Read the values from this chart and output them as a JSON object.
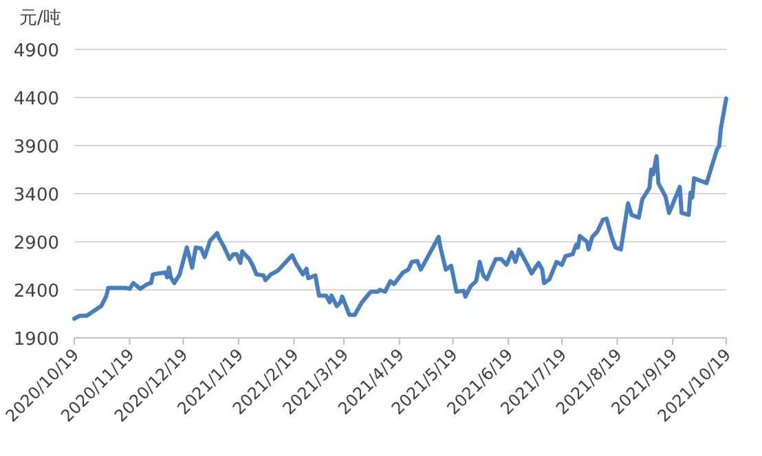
{
  "chart_data": {
    "type": "line",
    "ylabel": "元/吨",
    "x": [
      "2020-10-19",
      "2020-10-22",
      "2020-10-26",
      "2020-10-30",
      "2020-11-03",
      "2020-11-05",
      "2020-11-06",
      "2020-11-07",
      "2020-11-17",
      "2020-11-19",
      "2020-11-21",
      "2020-11-25",
      "2020-11-29",
      "2020-12-01",
      "2020-12-02",
      "2020-12-05",
      "2020-12-09",
      "2020-12-10",
      "2020-12-11",
      "2020-12-12",
      "2020-12-14",
      "2020-12-17",
      "2020-12-21",
      "2020-12-24",
      "2020-12-26",
      "2020-12-29",
      "2020-12-31",
      "2021-01-03",
      "2021-01-07",
      "2021-01-08",
      "2021-01-11",
      "2021-01-14",
      "2021-01-16",
      "2021-01-18",
      "2021-01-20",
      "2021-01-21",
      "2021-01-25",
      "2021-01-27",
      "2021-01-29",
      "2021-02-02",
      "2021-02-03",
      "2021-02-06",
      "2021-02-10",
      "2021-02-18",
      "2021-02-20",
      "2021-02-24",
      "2021-02-26",
      "2021-02-27",
      "2021-03-03",
      "2021-03-05",
      "2021-03-09",
      "2021-03-11",
      "2021-03-12",
      "2021-03-15",
      "2021-03-17",
      "2021-03-18",
      "2021-03-22",
      "2021-03-25",
      "2021-03-29",
      "2021-04-03",
      "2021-04-07",
      "2021-04-08",
      "2021-04-11",
      "2021-04-14",
      "2021-04-16",
      "2021-04-21",
      "2021-04-24",
      "2021-04-26",
      "2021-04-29",
      "2021-05-01",
      "2021-05-11",
      "2021-05-12",
      "2021-05-15",
      "2021-05-18",
      "2021-05-21",
      "2021-05-25",
      "2021-05-26",
      "2021-05-29",
      "2021-06-01",
      "2021-06-03",
      "2021-06-05",
      "2021-06-07",
      "2021-06-10",
      "2021-06-12",
      "2021-06-15",
      "2021-06-18",
      "2021-06-21",
      "2021-06-23",
      "2021-06-25",
      "2021-06-30",
      "2021-07-02",
      "2021-07-06",
      "2021-07-08",
      "2021-07-09",
      "2021-07-12",
      "2021-07-16",
      "2021-07-19",
      "2021-07-21",
      "2021-07-25",
      "2021-07-27",
      "2021-07-28",
      "2021-07-29",
      "2021-08-02",
      "2021-08-03",
      "2021-08-05",
      "2021-08-08",
      "2021-08-11",
      "2021-08-13",
      "2021-08-16",
      "2021-08-18",
      "2021-08-21",
      "2021-08-25",
      "2021-08-27",
      "2021-08-31",
      "2021-09-02",
      "2021-09-06",
      "2021-09-07",
      "2021-09-08",
      "2021-09-10",
      "2021-09-11",
      "2021-09-15",
      "2021-09-17",
      "2021-09-23",
      "2021-09-24",
      "2021-09-28",
      "2021-09-29",
      "2021-09-30",
      "2021-10-01",
      "2021-10-08",
      "2021-10-14",
      "2021-10-15",
      "2021-10-16",
      "2021-10-19"
    ],
    "series": [
      {
        "color": "#4a7ebb",
        "values": [
          2100,
          2130,
          2130,
          2180,
          2230,
          2300,
          2340,
          2420,
          2420,
          2410,
          2470,
          2410,
          2460,
          2470,
          2560,
          2570,
          2580,
          2530,
          2630,
          2530,
          2470,
          2560,
          2840,
          2630,
          2840,
          2830,
          2740,
          2910,
          2990,
          2940,
          2840,
          2720,
          2770,
          2770,
          2680,
          2800,
          2720,
          2650,
          2560,
          2550,
          2500,
          2560,
          2600,
          2760,
          2680,
          2560,
          2620,
          2520,
          2550,
          2340,
          2340,
          2270,
          2340,
          2230,
          2270,
          2330,
          2140,
          2140,
          2270,
          2380,
          2380,
          2400,
          2380,
          2490,
          2460,
          2580,
          2610,
          2690,
          2700,
          2610,
          2950,
          2840,
          2610,
          2650,
          2380,
          2390,
          2330,
          2440,
          2490,
          2690,
          2550,
          2510,
          2640,
          2720,
          2720,
          2660,
          2790,
          2690,
          2820,
          2650,
          2570,
          2680,
          2610,
          2470,
          2510,
          2690,
          2660,
          2750,
          2770,
          2870,
          2840,
          2960,
          2900,
          2820,
          2950,
          3010,
          3130,
          3140,
          2940,
          2840,
          2820,
          3300,
          3180,
          3150,
          3340,
          3460,
          3650,
          3600,
          3790,
          3510,
          3370,
          3200,
          3470,
          3200,
          3180,
          3410,
          3360,
          3560,
          3510,
          3870,
          3890,
          4080,
          4390
        ]
      }
    ],
    "xlim": [
      "2020-10-19",
      "2021-10-19"
    ],
    "xticks": [
      {
        "value": "2020-10-19",
        "label": "2020/10/19"
      },
      {
        "value": "2020-11-19",
        "label": "2020/11/19"
      },
      {
        "value": "2020-12-19",
        "label": "2020/12/19"
      },
      {
        "value": "2021-01-19",
        "label": "2021/1/19"
      },
      {
        "value": "2021-02-19",
        "label": "2021/2/19"
      },
      {
        "value": "2021-03-19",
        "label": "2021/3/19"
      },
      {
        "value": "2021-04-19",
        "label": "2021/4/19"
      },
      {
        "value": "2021-05-19",
        "label": "2021/5/19"
      },
      {
        "value": "2021-06-19",
        "label": "2021/6/19"
      },
      {
        "value": "2021-07-19",
        "label": "2021/7/19"
      },
      {
        "value": "2021-08-19",
        "label": "2021/8/19"
      },
      {
        "value": "2021-09-19",
        "label": "2021/9/19"
      },
      {
        "value": "2021-10-19",
        "label": "2021/10/19"
      }
    ],
    "ylim": [
      1900,
      4900
    ],
    "yticks": [
      1900,
      2400,
      2900,
      3400,
      3900,
      4400,
      4900
    ],
    "grid": "y",
    "marker": "none",
    "line_style": "solid"
  }
}
